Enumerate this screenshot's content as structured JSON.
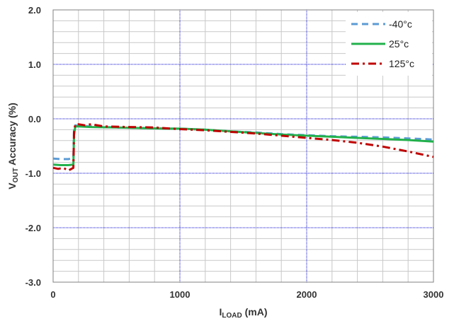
{
  "chart_data": {
    "type": "line",
    "title": "",
    "xlabel": {
      "main": "I",
      "sub": "LOAD",
      "rest": " (mA)"
    },
    "ylabel": {
      "main": "V",
      "sub": "OUT",
      "rest": " Accuracy (%)"
    },
    "xlim": [
      0,
      3000
    ],
    "ylim": [
      -3.0,
      2.0
    ],
    "x_major_ticks": [
      0,
      1000,
      2000,
      3000
    ],
    "x_tick_labels": [
      "0",
      "1000",
      "2000",
      "3000"
    ],
    "y_major_ticks": [
      -3.0,
      -2.0,
      -1.0,
      0.0,
      1.0,
      2.0
    ],
    "y_tick_labels": [
      "-3.0",
      "-2.0",
      "-1.0",
      "0.0",
      "1.0",
      "2.0"
    ],
    "x_minor_step": 200,
    "y_minor_step": 0.2,
    "grid": true,
    "legend_position": "top-right",
    "series": [
      {
        "name": "-40°c",
        "color": "#5B9BD5",
        "dash": "dash",
        "points": [
          [
            0,
            -0.73
          ],
          [
            60,
            -0.74
          ],
          [
            120,
            -0.74
          ],
          [
            160,
            -0.72
          ],
          [
            165,
            -0.2
          ],
          [
            175,
            -0.12
          ],
          [
            200,
            -0.13
          ],
          [
            300,
            -0.14
          ],
          [
            500,
            -0.16
          ],
          [
            700,
            -0.17
          ],
          [
            900,
            -0.18
          ],
          [
            1000,
            -0.18
          ],
          [
            1200,
            -0.2
          ],
          [
            1400,
            -0.23
          ],
          [
            1600,
            -0.25
          ],
          [
            1800,
            -0.28
          ],
          [
            2000,
            -0.3
          ],
          [
            2200,
            -0.32
          ],
          [
            2400,
            -0.33
          ],
          [
            2600,
            -0.34
          ],
          [
            2800,
            -0.36
          ],
          [
            3000,
            -0.38
          ]
        ]
      },
      {
        "name": "25°c",
        "color": "#22B14C",
        "dash": "solid",
        "points": [
          [
            0,
            -0.84
          ],
          [
            60,
            -0.85
          ],
          [
            120,
            -0.85
          ],
          [
            160,
            -0.84
          ],
          [
            165,
            -0.3
          ],
          [
            175,
            -0.14
          ],
          [
            200,
            -0.14
          ],
          [
            300,
            -0.15
          ],
          [
            500,
            -0.16
          ],
          [
            700,
            -0.17
          ],
          [
            900,
            -0.18
          ],
          [
            1000,
            -0.18
          ],
          [
            1200,
            -0.2
          ],
          [
            1400,
            -0.23
          ],
          [
            1600,
            -0.26
          ],
          [
            1800,
            -0.29
          ],
          [
            2000,
            -0.31
          ],
          [
            2200,
            -0.33
          ],
          [
            2400,
            -0.35
          ],
          [
            2600,
            -0.37
          ],
          [
            2800,
            -0.39
          ],
          [
            3000,
            -0.42
          ]
        ]
      },
      {
        "name": "125°c",
        "color": "#C00000",
        "dash": "dashdot",
        "points": [
          [
            0,
            -0.9
          ],
          [
            40,
            -0.92
          ],
          [
            80,
            -0.9
          ],
          [
            120,
            -0.95
          ],
          [
            160,
            -0.9
          ],
          [
            165,
            -0.25
          ],
          [
            175,
            -0.1
          ],
          [
            200,
            -0.1
          ],
          [
            250,
            -0.12
          ],
          [
            300,
            -0.1
          ],
          [
            400,
            -0.14
          ],
          [
            600,
            -0.15
          ],
          [
            800,
            -0.16
          ],
          [
            1000,
            -0.19
          ],
          [
            1200,
            -0.21
          ],
          [
            1400,
            -0.24
          ],
          [
            1600,
            -0.27
          ],
          [
            1800,
            -0.31
          ],
          [
            2000,
            -0.35
          ],
          [
            2200,
            -0.39
          ],
          [
            2400,
            -0.44
          ],
          [
            2600,
            -0.51
          ],
          [
            2800,
            -0.6
          ],
          [
            3000,
            -0.7
          ]
        ]
      }
    ]
  }
}
